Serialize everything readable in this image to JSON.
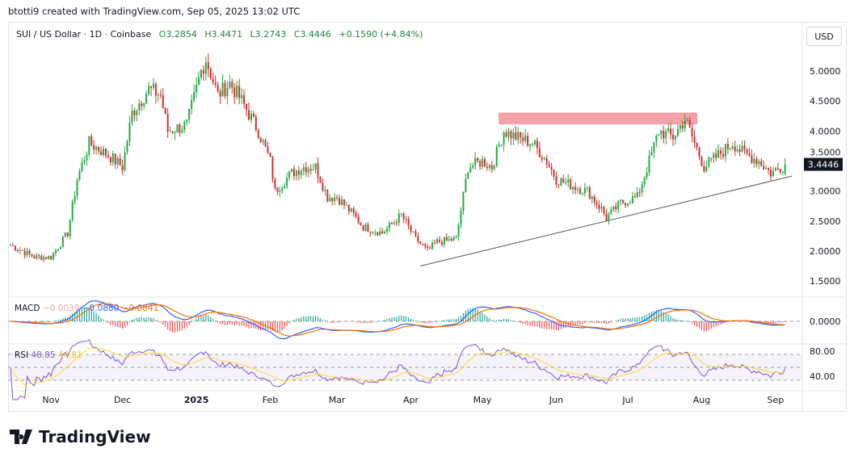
{
  "credit": "btotti9 created with TradingView.com, Sep 05, 2025 13:02 UTC",
  "legend": {
    "symbol": "SUI / US Dollar · 1D · Coinbase",
    "open": "O3.2854",
    "high": "H3.4471",
    "low": "L3.2743",
    "close": "C3.4446",
    "change": "+0.1590 (+4.84%)"
  },
  "currency_button": "USD",
  "current_price_label": "3.4446",
  "macd": {
    "label": "MACD",
    "hist": "−0.0039",
    "macd": "−0.0880",
    "signal": "−0.0841"
  },
  "rsi": {
    "label": "RSI",
    "value": "48.85",
    "ma": "44.81"
  },
  "footer_brand": "TradingView",
  "colors": {
    "up": "#089981",
    "down": "#f23645",
    "candle_up": "#22ab44",
    "candle_down": "#d32f2f",
    "zone": "#f7a1a8",
    "macd": "#2962ff",
    "signal": "#ff6d00",
    "rsi": "#7e57c2",
    "rsi_ma": "#fdd835"
  },
  "chart_data": {
    "type": "candlestick",
    "price_axis": {
      "ticks": [
        "5.0000",
        "4.5000",
        "4.0000",
        "3.5000",
        "3.0000",
        "2.5000",
        "2.0000",
        "1.5000"
      ],
      "range": [
        1.35,
        5.55
      ]
    },
    "macd_axis": {
      "ticks": [
        "0.0000"
      ]
    },
    "rsi_axis": {
      "ticks": [
        "80.00",
        "40.00"
      ]
    },
    "time_axis": {
      "ticks": [
        "Nov",
        "Dec",
        "2025",
        "Feb",
        "Mar",
        "Apr",
        "May",
        "Jun",
        "Jul",
        "Aug",
        "Sep"
      ]
    },
    "resistance_zone": {
      "from": "2025-05-08",
      "to": "2025-07-30",
      "low": 4.12,
      "high": 4.3
    },
    "trendline": {
      "from": {
        "date": "2025-04-05",
        "price": 1.75
      },
      "to": {
        "date": "2025-09-08",
        "price": 3.25
      }
    },
    "close_path": [
      [
        "2024-10-15",
        2.1
      ],
      [
        "2024-10-25",
        1.9
      ],
      [
        "2024-11-01",
        1.9
      ],
      [
        "2024-11-08",
        2.3
      ],
      [
        "2024-11-12",
        3.2
      ],
      [
        "2024-11-17",
        3.8
      ],
      [
        "2024-11-25",
        3.6
      ],
      [
        "2024-12-01",
        3.4
      ],
      [
        "2024-12-05",
        4.3
      ],
      [
        "2024-12-12",
        4.7
      ],
      [
        "2024-12-17",
        4.6
      ],
      [
        "2024-12-20",
        4.0
      ],
      [
        "2024-12-28",
        4.1
      ],
      [
        "2025-01-03",
        5.0
      ],
      [
        "2025-01-05",
        5.2
      ],
      [
        "2025-01-10",
        4.6
      ],
      [
        "2025-01-15",
        4.8
      ],
      [
        "2025-01-20",
        4.5
      ],
      [
        "2025-01-27",
        4.0
      ],
      [
        "2025-02-01",
        3.5
      ],
      [
        "2025-02-03",
        3.0
      ],
      [
        "2025-02-10",
        3.3
      ],
      [
        "2025-02-15",
        3.4
      ],
      [
        "2025-02-20",
        3.4
      ],
      [
        "2025-02-25",
        2.9
      ],
      [
        "2025-03-01",
        2.9
      ],
      [
        "2025-03-08",
        2.6
      ],
      [
        "2025-03-12",
        2.4
      ],
      [
        "2025-03-20",
        2.3
      ],
      [
        "2025-03-28",
        2.6
      ],
      [
        "2025-04-03",
        2.2
      ],
      [
        "2025-04-08",
        2.0
      ],
      [
        "2025-04-12",
        2.15
      ],
      [
        "2025-04-20",
        2.2
      ],
      [
        "2025-04-25",
        3.4
      ],
      [
        "2025-05-01",
        3.5
      ],
      [
        "2025-05-05",
        3.4
      ],
      [
        "2025-05-10",
        4.0
      ],
      [
        "2025-05-15",
        3.9
      ],
      [
        "2025-05-22",
        3.8
      ],
      [
        "2025-05-28",
        3.5
      ],
      [
        "2025-06-01",
        3.2
      ],
      [
        "2025-06-07",
        3.1
      ],
      [
        "2025-06-14",
        3.0
      ],
      [
        "2025-06-20",
        2.7
      ],
      [
        "2025-06-22",
        2.55
      ],
      [
        "2025-06-28",
        2.8
      ],
      [
        "2025-07-05",
        2.9
      ],
      [
        "2025-07-10",
        3.5
      ],
      [
        "2025-07-14",
        4.0
      ],
      [
        "2025-07-20",
        3.9
      ],
      [
        "2025-07-25",
        4.2
      ],
      [
        "2025-07-28",
        3.9
      ],
      [
        "2025-08-02",
        3.4
      ],
      [
        "2025-08-08",
        3.6
      ],
      [
        "2025-08-14",
        3.8
      ],
      [
        "2025-08-18",
        3.65
      ],
      [
        "2025-08-25",
        3.5
      ],
      [
        "2025-08-30",
        3.3
      ],
      [
        "2025-09-05",
        3.4446
      ]
    ]
  }
}
